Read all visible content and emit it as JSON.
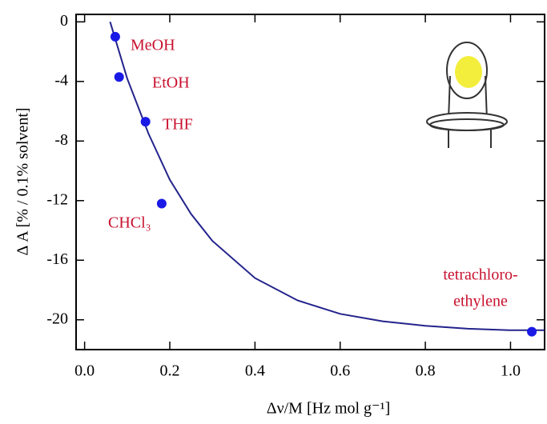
{
  "chart_data": {
    "type": "scatter",
    "xlabel": "Δν/M [Hz mol g⁻¹]",
    "ylabel": "Δ A  [% / 0.1% solvent]",
    "x": [
      0.072,
      0.081,
      0.143,
      0.181,
      1.05
    ],
    "values": [
      -1.0,
      -3.7,
      -6.7,
      -12.2,
      -20.8
    ],
    "point_labels": [
      "MeOH",
      "EtOH",
      "THF",
      "CHCl₃",
      [
        "tetrachloro-",
        "ethylene"
      ]
    ],
    "color": "#1a1ae6",
    "fit": {
      "color": "#23238c",
      "x": [
        0.06,
        0.1,
        0.15,
        0.2,
        0.25,
        0.3,
        0.4,
        0.5,
        0.6,
        0.7,
        0.8,
        0.9,
        1.0,
        1.08
      ],
      "values": [
        0,
        -3.8,
        -7.5,
        -10.6,
        -12.9,
        -14.7,
        -17.2,
        -18.7,
        -19.6,
        -20.1,
        -20.4,
        -20.6,
        -20.7,
        -20.7
      ]
    },
    "label_color": "#c8102e",
    "xlim": [
      -0.02,
      1.08
    ],
    "ylim": [
      -22,
      0.5
    ],
    "xticks": [
      {
        "value": 0,
        "label": "0.0"
      },
      0.2,
      0.4,
      0.6,
      0.8,
      {
        "value": 1,
        "label": "1.0"
      }
    ],
    "yticks": [
      0,
      -4,
      -8,
      -12,
      -16,
      -20
    ]
  }
}
